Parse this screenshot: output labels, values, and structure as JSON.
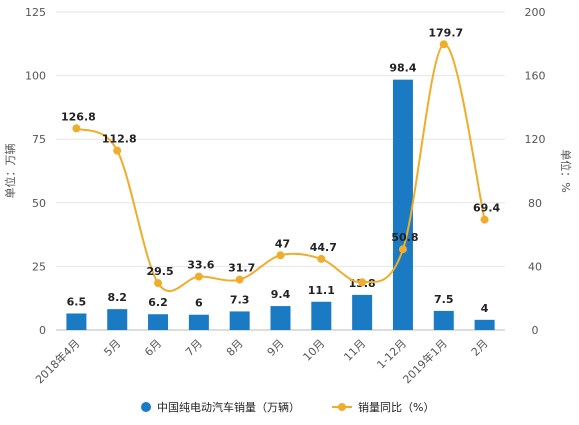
{
  "chart_data": {
    "type": "bar",
    "categories": [
      "2018年4月",
      "5月",
      "6月",
      "7月",
      "8月",
      "9月",
      "10月",
      "11月",
      "1-12月",
      "2019年1月",
      "2月"
    ],
    "series": [
      {
        "name": "中国纯电动汽车销量（万辆）",
        "type": "bar",
        "axis": "left",
        "color": "#1a7ac4",
        "values": [
          6.5,
          8.2,
          6.2,
          6,
          7.3,
          9.4,
          11.1,
          13.8,
          98.4,
          7.5,
          4
        ],
        "labels": [
          "6.5",
          "8.2",
          "6.2",
          "6",
          "7.3",
          "9.4",
          "11.1",
          "13.8",
          "98.4",
          "7.5",
          "4"
        ]
      },
      {
        "name": "销量同比（%）",
        "type": "line",
        "axis": "right",
        "color": "#f0ad2b",
        "values": [
          126.8,
          112.8,
          29.5,
          33.6,
          31.7,
          47,
          44.7,
          30,
          50.8,
          179.7,
          69.4
        ],
        "labels": [
          "126.8",
          "112.8",
          "29.5",
          "33.6",
          "31.7",
          "47",
          "44.7",
          "",
          "50.8",
          "179.7",
          "69.4"
        ]
      }
    ],
    "ylabel": "单位：万辆",
    "y2label": "单位：%",
    "ylim": [
      0,
      125
    ],
    "y2lim": [
      0,
      200
    ],
    "yticks": [
      "0",
      "25",
      "50",
      "75",
      "100",
      "125"
    ],
    "y2ticks": [
      "0",
      "40",
      "80",
      "120",
      "160",
      "200"
    ],
    "grid": true,
    "legend": "bottom"
  }
}
